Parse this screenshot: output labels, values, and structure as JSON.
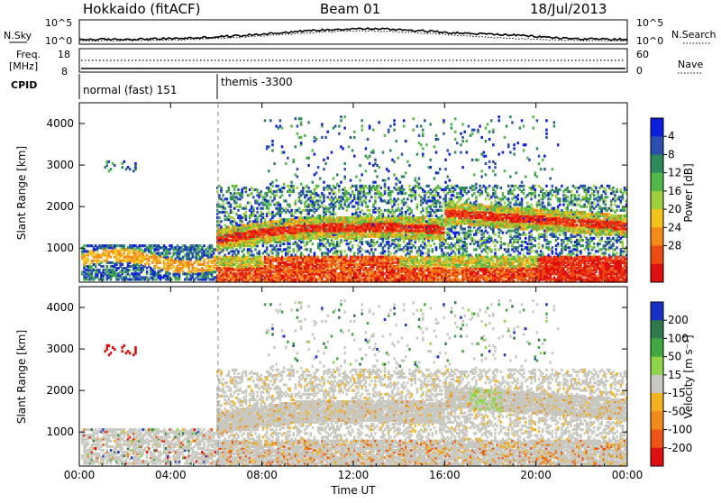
{
  "header": {
    "station": "Hokkaido (fitACF)",
    "beam": "Beam 01",
    "date": "18/Jul/2013"
  },
  "noise_panel": {
    "left_label": "N.Sky",
    "left_ticks": [
      "10^5",
      "10^0"
    ],
    "right_label": "N.Search",
    "right_ticks": [
      "10^5",
      "10^0"
    ]
  },
  "freq_panel": {
    "left_label_1": "Freq.",
    "left_label_2": "[MHz]",
    "left_ticks": [
      "18",
      "8"
    ],
    "right_label": "Nave",
    "right_ticks": [
      "60",
      "0"
    ]
  },
  "cpid_panel": {
    "label": "CPID",
    "mode_1": "normal (fast) 151",
    "mode_2": "themis -3300"
  },
  "time_axis": {
    "label": "Time UT",
    "ticks": [
      "00:00",
      "04:00",
      "08:00",
      "12:00",
      "16:00",
      "20:00",
      "00:00"
    ]
  },
  "chart_data": [
    {
      "type": "heatmap",
      "title": "",
      "xlabel": "Time UT",
      "ylabel": "Slant Range [km]",
      "x_ticks_hours": [
        0,
        4,
        8,
        12,
        16,
        20,
        24
      ],
      "y_ticks": [
        1000,
        2000,
        3000,
        4000
      ],
      "ylim": [
        180,
        4500
      ],
      "colorbar": {
        "label": "Power [dB]",
        "ticks": [
          "4",
          "8",
          "12",
          "16",
          "20",
          "24",
          "28"
        ],
        "colors": [
          "#0a1edc",
          "#2a4fb0",
          "#2e8a5a",
          "#52b84a",
          "#9ccf3e",
          "#f4c21c",
          "#f38a1a",
          "#ee4a12",
          "#e01010"
        ]
      },
      "echo_bands": [
        {
          "t_start": 0.2,
          "t_end": 6.0,
          "range_km": 520,
          "level": "weak"
        },
        {
          "t_start": 6.0,
          "t_end": 24.0,
          "range_km": 600,
          "level": "strong"
        },
        {
          "t_start": 6.0,
          "t_end": 16.0,
          "range_km": 1500,
          "level": "strong"
        },
        {
          "t_start": 16.0,
          "t_end": 22.0,
          "range_km": 1700,
          "level": "strong"
        }
      ]
    },
    {
      "type": "heatmap",
      "title": "",
      "xlabel": "Time UT",
      "ylabel": "Slant Range [km]",
      "x_ticks_hours": [
        0,
        4,
        8,
        12,
        16,
        20,
        24
      ],
      "y_ticks": [
        1000,
        2000,
        3000,
        4000
      ],
      "ylim": [
        180,
        4500
      ],
      "colorbar": {
        "label": "Velocity [m s⁻¹]",
        "ticks": [
          "200",
          "100",
          "50",
          "15",
          "-15",
          "-50",
          "-100",
          "-200"
        ],
        "colors": [
          "#1a2ec8",
          "#2f7a4a",
          "#3fa83f",
          "#8fd44a",
          "#c8c8c0",
          "#f2b21e",
          "#f08a1a",
          "#ec5514",
          "#e01010"
        ]
      }
    }
  ]
}
